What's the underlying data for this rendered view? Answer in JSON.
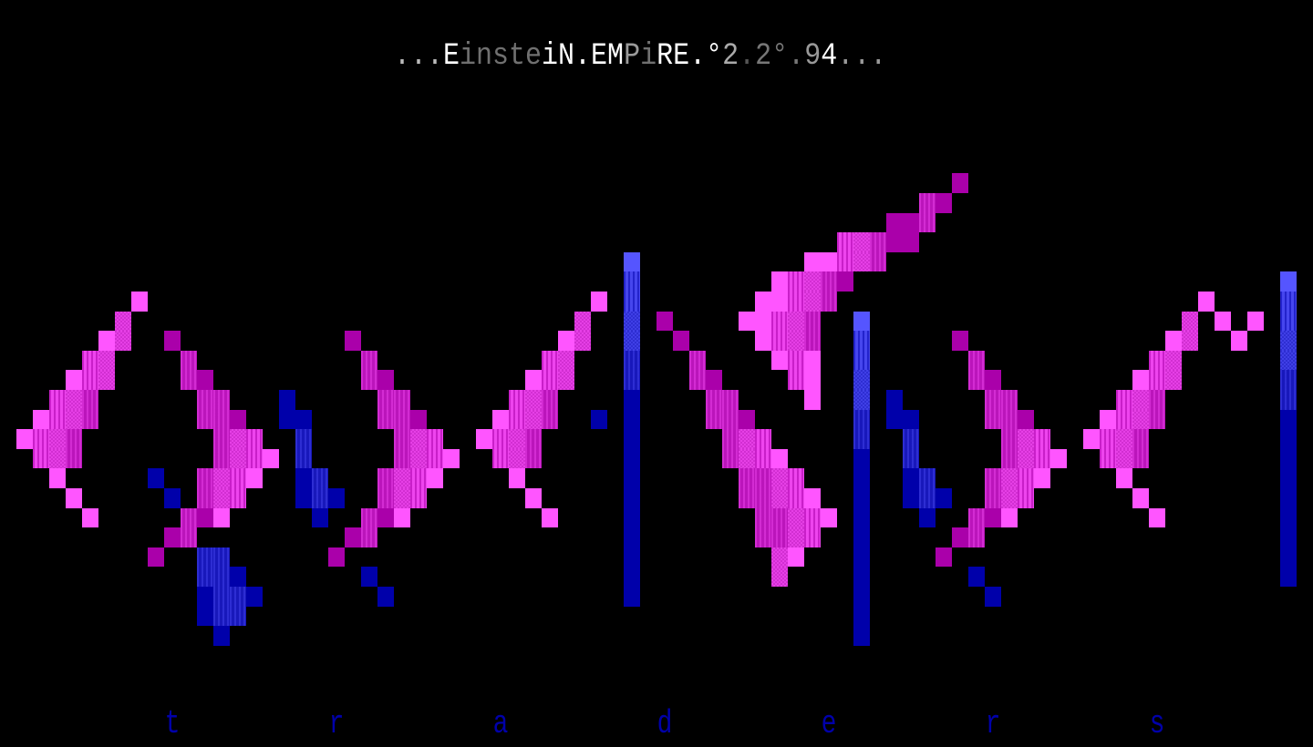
{
  "title": {
    "segments": [
      {
        "text": "...",
        "color": "#BBBBBB"
      },
      {
        "text": "E",
        "color": "#FFFFFF"
      },
      {
        "text": "inste",
        "color": "#707070"
      },
      {
        "text": "iN.EM",
        "color": "#FFFFFF"
      },
      {
        "text": "P",
        "color": "#9A9A9A"
      },
      {
        "text": "i",
        "color": "#707070"
      },
      {
        "text": "RE.",
        "color": "#FFFFFF"
      },
      {
        "text": "°",
        "color": "#FFFFFF"
      },
      {
        "text": "2",
        "color": "#AAAAAA"
      },
      {
        "text": ".",
        "color": "#555555"
      },
      {
        "text": "2°",
        "color": "#777777"
      },
      {
        "text": ".",
        "color": "#777777"
      },
      {
        "text": "9",
        "color": "#999999"
      },
      {
        "text": "4",
        "color": "#FFFFFF"
      },
      {
        "text": "...",
        "color": "#999999"
      }
    ]
  },
  "bottom_letters": [
    "t",
    "r",
    "a",
    "d",
    "e",
    "r",
    "s"
  ],
  "bottom_color": "#0000AA",
  "palette": {
    "light_magenta": "#FF55FF",
    "dark_magenta": "#AA00AA",
    "magenta_dither_light": "#EE44EE",
    "magenta_checker": "#D22ED2",
    "magenta_dither_dark": "#BB15BB",
    "light_blue": "#5555FF",
    "blue_dither_light": "#4646EE",
    "blue_checker": "#2E2ED2",
    "blue_dither_dark": "#1818BB",
    "blue": "#0000AA",
    "background": "#000000"
  }
}
